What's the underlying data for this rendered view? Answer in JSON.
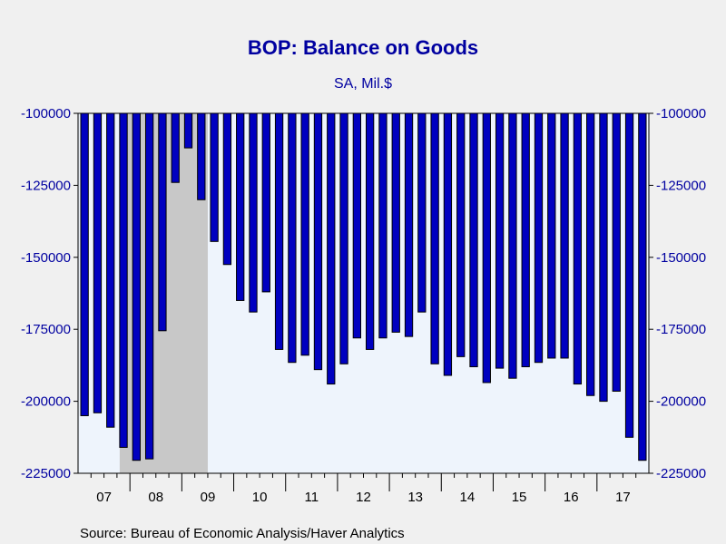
{
  "chart_data": {
    "type": "bar",
    "title": "BOP: Balance on Goods",
    "subtitle": "SA, Mil.$",
    "source": "Source:  Bureau of Economic Analysis/Haver Analytics",
    "ylim": [
      -225000,
      -100000
    ],
    "y_ticks": [
      -100000,
      -125000,
      -150000,
      -175000,
      -200000,
      -225000
    ],
    "y_tick_labels": [
      "-100000",
      "-125000",
      "-150000",
      "-175000",
      "-200000",
      "-225000"
    ],
    "x_start": "2007-Q1",
    "frequency": "quarterly",
    "year_labels": [
      "07",
      "08",
      "09",
      "10",
      "11",
      "12",
      "13",
      "14",
      "15",
      "16",
      "17"
    ],
    "shaded_region": {
      "start": "2007-Q4",
      "end": "2009-Q2"
    },
    "colors": {
      "bar_fill": "#0000c0",
      "bar_edge": "#000000",
      "plot_bg": "#eef4fc",
      "page_bg": "#f0f0f0",
      "recession": "#c8c8c8",
      "text_blue": "#0000a0"
    },
    "categories": [
      "2007-Q1",
      "2007-Q2",
      "2007-Q3",
      "2007-Q4",
      "2008-Q1",
      "2008-Q2",
      "2008-Q3",
      "2008-Q4",
      "2009-Q1",
      "2009-Q2",
      "2009-Q3",
      "2009-Q4",
      "2010-Q1",
      "2010-Q2",
      "2010-Q3",
      "2010-Q4",
      "2011-Q1",
      "2011-Q2",
      "2011-Q3",
      "2011-Q4",
      "2012-Q1",
      "2012-Q2",
      "2012-Q3",
      "2012-Q4",
      "2013-Q1",
      "2013-Q2",
      "2013-Q3",
      "2013-Q4",
      "2014-Q1",
      "2014-Q2",
      "2014-Q3",
      "2014-Q4",
      "2015-Q1",
      "2015-Q2",
      "2015-Q3",
      "2015-Q4",
      "2016-Q1",
      "2016-Q2",
      "2016-Q3",
      "2016-Q4",
      "2017-Q1",
      "2017-Q2",
      "2017-Q3",
      "2017-Q4"
    ],
    "values": [
      -205000,
      -204000,
      -209000,
      -216000,
      -220500,
      -220000,
      -175500,
      -124000,
      -112000,
      -130000,
      -144500,
      -152500,
      -165000,
      -169000,
      -162000,
      -182000,
      -186500,
      -184000,
      -189000,
      -194000,
      -187000,
      -178000,
      -182000,
      -178000,
      -176000,
      -177500,
      -169000,
      -187000,
      -191000,
      -184500,
      -188000,
      -193500,
      -188500,
      -192000,
      -188000,
      -186500,
      -185000,
      -185000,
      -194000,
      -198000,
      -200000,
      -196500,
      -212500,
      -220500
    ]
  }
}
